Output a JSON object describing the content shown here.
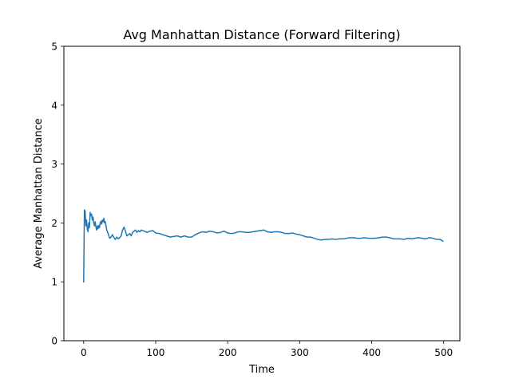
{
  "chart_data": {
    "type": "line",
    "title": "Avg Manhattan Distance (Forward Filtering)",
    "xlabel": "Time",
    "ylabel": "Average Manhattan Distance",
    "xlim": [
      -27.5,
      522.5
    ],
    "ylim": [
      0,
      5
    ],
    "xticks": [
      0,
      100,
      200,
      300,
      400,
      500
    ],
    "yticks": [
      0,
      1,
      2,
      3,
      4,
      5
    ],
    "grid": false,
    "legend": "none",
    "series": [
      {
        "color": "#1f77b4",
        "x": [
          0,
          1,
          2,
          3,
          4,
          5,
          6,
          7,
          8,
          9,
          10,
          11,
          12,
          13,
          14,
          15,
          16,
          17,
          18,
          19,
          20,
          21,
          22,
          23,
          24,
          25,
          26,
          27,
          28,
          29,
          30,
          32,
          34,
          36,
          38,
          40,
          42,
          44,
          46,
          48,
          50,
          52,
          54,
          56,
          58,
          60,
          62,
          64,
          66,
          68,
          70,
          72,
          74,
          76,
          78,
          80,
          84,
          88,
          92,
          96,
          100,
          105,
          110,
          115,
          120,
          125,
          130,
          135,
          140,
          145,
          150,
          155,
          160,
          165,
          170,
          175,
          180,
          185,
          190,
          195,
          200,
          205,
          210,
          215,
          220,
          225,
          230,
          235,
          240,
          245,
          250,
          255,
          260,
          265,
          270,
          275,
          280,
          285,
          290,
          295,
          300,
          305,
          310,
          315,
          320,
          325,
          330,
          335,
          340,
          345,
          350,
          355,
          360,
          365,
          370,
          375,
          380,
          385,
          390,
          395,
          400,
          405,
          410,
          415,
          420,
          425,
          430,
          435,
          440,
          445,
          450,
          455,
          460,
          465,
          470,
          475,
          480,
          485,
          490,
          495,
          499
        ],
        "y": [
          1.0,
          2.22,
          2.2,
          1.95,
          2.05,
          1.9,
          1.85,
          2.0,
          1.92,
          2.18,
          2.12,
          2.15,
          2.05,
          2.1,
          2.0,
          1.95,
          2.02,
          1.93,
          1.88,
          1.95,
          1.9,
          1.96,
          1.92,
          2.0,
          2.03,
          1.98,
          2.05,
          2.02,
          2.08,
          2.0,
          2.02,
          1.88,
          1.82,
          1.74,
          1.76,
          1.8,
          1.75,
          1.72,
          1.76,
          1.73,
          1.75,
          1.78,
          1.88,
          1.93,
          1.86,
          1.78,
          1.8,
          1.82,
          1.78,
          1.84,
          1.86,
          1.88,
          1.84,
          1.87,
          1.85,
          1.88,
          1.86,
          1.84,
          1.86,
          1.87,
          1.83,
          1.82,
          1.8,
          1.78,
          1.76,
          1.77,
          1.78,
          1.76,
          1.78,
          1.76,
          1.76,
          1.8,
          1.83,
          1.85,
          1.84,
          1.86,
          1.85,
          1.83,
          1.84,
          1.86,
          1.83,
          1.82,
          1.83,
          1.85,
          1.85,
          1.84,
          1.84,
          1.85,
          1.86,
          1.87,
          1.88,
          1.85,
          1.84,
          1.85,
          1.85,
          1.84,
          1.82,
          1.82,
          1.83,
          1.81,
          1.8,
          1.78,
          1.76,
          1.76,
          1.74,
          1.72,
          1.71,
          1.72,
          1.72,
          1.73,
          1.72,
          1.73,
          1.73,
          1.74,
          1.75,
          1.75,
          1.74,
          1.74,
          1.75,
          1.74,
          1.74,
          1.74,
          1.75,
          1.76,
          1.76,
          1.75,
          1.73,
          1.73,
          1.73,
          1.72,
          1.74,
          1.73,
          1.74,
          1.75,
          1.74,
          1.73,
          1.75,
          1.74,
          1.72,
          1.72,
          1.69
        ]
      }
    ]
  }
}
